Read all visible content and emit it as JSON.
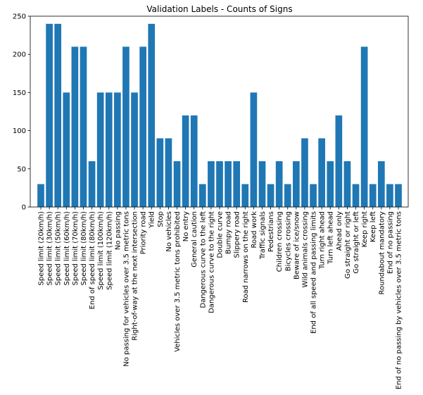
{
  "chart_data": {
    "type": "bar",
    "title": "Validation Labels - Counts of Signs",
    "xlabel": "",
    "ylabel": "",
    "ylim": [
      0,
      250
    ],
    "yticks": [
      0,
      50,
      100,
      150,
      200,
      250
    ],
    "grid": false,
    "bar_color": "#1f77b4",
    "categories": [
      "Speed limit (20km/h)",
      "Speed limit (30km/h)",
      "Speed limit (50km/h)",
      "Speed limit (60km/h)",
      "Speed limit (70km/h)",
      "Speed limit (80km/h)",
      "End of speed limit (80km/h)",
      "Speed limit (100km/h)",
      "Speed limit (120km/h)",
      "No passing",
      "No passing for vehicles over 3.5 metric tons",
      "Right-of-way at the next intersection",
      "Priority road",
      "Yield",
      "Stop",
      "No vehicles",
      "Vehicles over 3.5 metric tons prohibited",
      "No entry",
      "General caution",
      "Dangerous curve to the left",
      "Dangerous curve to the right",
      "Double curve",
      "Bumpy road",
      "Slippery road",
      "Road narrows on the right",
      "Road work",
      "Traffic signals",
      "Pedestrians",
      "Children crossing",
      "Bicycles crossing",
      "Beware of ice/snow",
      "Wild animals crossing",
      "End of all speed and passing limits",
      "Turn right ahead",
      "Turn left ahead",
      "Ahead only",
      "Go straight or right",
      "Go straight or left",
      "Keep right",
      "Keep left",
      "Roundabout mandatory",
      "End of no passing",
      "End of no passing by vehicles over 3.5 metric tons"
    ],
    "values": [
      30,
      240,
      240,
      150,
      210,
      210,
      60,
      150,
      150,
      150,
      210,
      150,
      210,
      240,
      90,
      90,
      60,
      120,
      120,
      30,
      60,
      60,
      60,
      60,
      30,
      150,
      60,
      30,
      60,
      30,
      60,
      90,
      30,
      90,
      60,
      120,
      60,
      30,
      210,
      30,
      60,
      30,
      30
    ]
  }
}
